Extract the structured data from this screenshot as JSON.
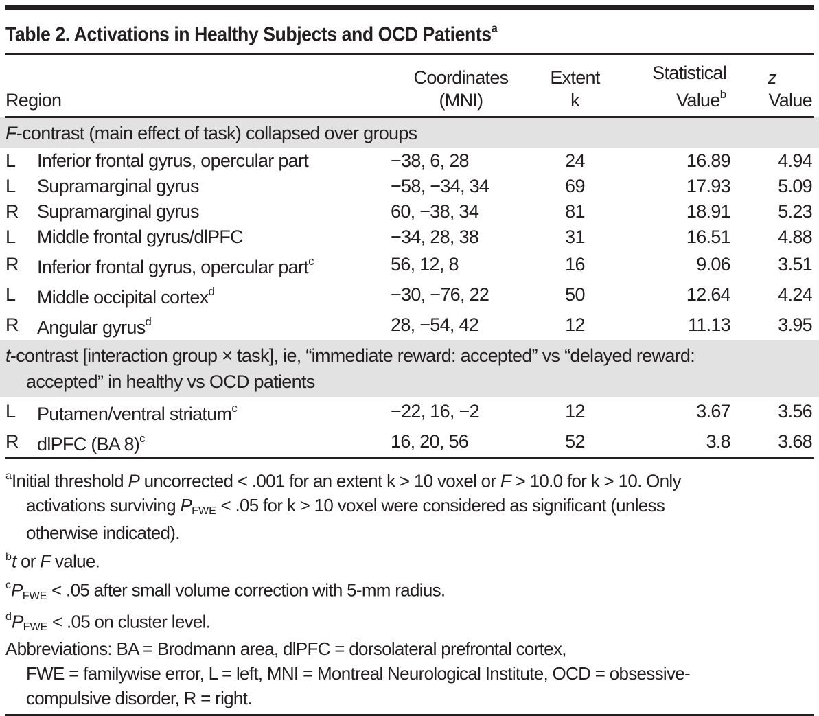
{
  "colors": {
    "text": "#231f20",
    "rule": "#231f20",
    "section_bg": "#e2e2e2",
    "page_bg": "#ffffff"
  },
  "title": [
    {
      "t": "Table 2. Activations in Healthy Subjects and OCD Patients"
    },
    {
      "t": "a",
      "sup": true
    }
  ],
  "columns": {
    "region": {
      "line1": [],
      "line2": [
        {
          "t": "Region"
        }
      ]
    },
    "coordinates": {
      "line1": [
        {
          "t": "Coordinates"
        }
      ],
      "line2": [
        {
          "t": "(MNI)"
        }
      ]
    },
    "extent": {
      "line1": [
        {
          "t": "Extent"
        }
      ],
      "line2": [
        {
          "t": "k"
        }
      ]
    },
    "statistical": {
      "line1": [
        {
          "t": "Statistical"
        }
      ],
      "line2": [
        {
          "t": "Value"
        },
        {
          "t": "b",
          "sup": true
        }
      ]
    },
    "z": {
      "line1": [
        {
          "t": "z",
          "i": true
        }
      ],
      "line2": [
        {
          "t": "Value"
        }
      ]
    }
  },
  "sections": [
    {
      "header_lines": [
        [
          {
            "t": "F",
            "i": true
          },
          {
            "t": "-contrast (main effect of task) collapsed over groups"
          }
        ]
      ],
      "rows": [
        {
          "side": "L",
          "region": [
            {
              "t": "Inferior frontal gyrus, opercular part"
            }
          ],
          "coordinates": "−38, 6, 28",
          "extent": "24",
          "statistical": "16.89",
          "z": "4.94"
        },
        {
          "side": "L",
          "region": [
            {
              "t": "Supramarginal gyrus"
            }
          ],
          "coordinates": "−58, −34, 34",
          "extent": "69",
          "statistical": "17.93",
          "z": "5.09"
        },
        {
          "side": "R",
          "region": [
            {
              "t": "Supramarginal gyrus"
            }
          ],
          "coordinates": "60, −38, 34",
          "extent": "81",
          "statistical": "18.91",
          "z": "5.23"
        },
        {
          "side": "L",
          "region": [
            {
              "t": "Middle frontal gyrus/dlPFC"
            }
          ],
          "coordinates": "−34, 28, 38",
          "extent": "31",
          "statistical": "16.51",
          "z": "4.88"
        },
        {
          "side": "R",
          "region": [
            {
              "t": "Inferior frontal gyrus, opercular part"
            },
            {
              "t": "c",
              "sup": true
            }
          ],
          "coordinates": "56, 12, 8",
          "extent": "16",
          "statistical": "9.06",
          "z": "3.51"
        },
        {
          "side": "L",
          "region": [
            {
              "t": "Middle occipital cortex"
            },
            {
              "t": "d",
              "sup": true
            }
          ],
          "coordinates": "−30, −76, 22",
          "extent": "50",
          "statistical": "12.64",
          "z": "4.24"
        },
        {
          "side": "R",
          "region": [
            {
              "t": "Angular gyrus"
            },
            {
              "t": "d",
              "sup": true
            }
          ],
          "coordinates": "28, −54, 42",
          "extent": "12",
          "statistical": "11.13",
          "z": "3.95"
        }
      ]
    },
    {
      "header_lines": [
        [
          {
            "t": "t",
            "i": true
          },
          {
            "t": "-contrast [interaction group × task], ie, “immediate reward: accepted” vs “delayed reward:"
          }
        ],
        [
          {
            "t": "accepted” in healthy vs OCD patients"
          }
        ]
      ],
      "rows": [
        {
          "side": "L",
          "region": [
            {
              "t": "Putamen/ventral striatum"
            },
            {
              "t": "c",
              "sup": true
            }
          ],
          "coordinates": "−22, 16, −2",
          "extent": "12",
          "statistical": "3.67",
          "z": "3.56"
        },
        {
          "side": "R",
          "region": [
            {
              "t": "dlPFC (BA 8)"
            },
            {
              "t": "c",
              "sup": true
            }
          ],
          "coordinates": "16, 20, 56",
          "extent": "52",
          "statistical": "3.8",
          "z": "3.68"
        }
      ]
    }
  ],
  "footnotes": [
    {
      "marker": "a",
      "lines": [
        [
          {
            "t": "Initial threshold "
          },
          {
            "t": "P",
            "i": true
          },
          {
            "t": " uncorrected < .001 for an extent k > 10 voxel or "
          },
          {
            "t": "F",
            "i": true
          },
          {
            "t": " > 10.0 for k > 10. Only"
          }
        ],
        [
          {
            "t": "activations surviving "
          },
          {
            "t": "P",
            "i": true
          },
          {
            "t": "FWE",
            "sub": true
          },
          {
            "t": " < .05 for k > 10 voxel were considered as significant (unless"
          }
        ],
        [
          {
            "t": "otherwise indicated)."
          }
        ]
      ]
    },
    {
      "marker": "b",
      "lines": [
        [
          {
            "t": "t",
            "i": true
          },
          {
            "t": " or "
          },
          {
            "t": "F",
            "i": true
          },
          {
            "t": " value."
          }
        ]
      ]
    },
    {
      "marker": "c",
      "lines": [
        [
          {
            "t": "P",
            "i": true
          },
          {
            "t": "FWE",
            "sub": true
          },
          {
            "t": " < .05 after small volume correction with 5-mm radius."
          }
        ]
      ]
    },
    {
      "marker": "d",
      "lines": [
        [
          {
            "t": "P",
            "i": true
          },
          {
            "t": "FWE",
            "sub": true
          },
          {
            "t": " < .05 on cluster level."
          }
        ]
      ]
    },
    {
      "marker": "",
      "lines": [
        [
          {
            "t": "Abbreviations: BA = Brodmann area, dlPFC = dorsolateral prefrontal cortex,"
          }
        ],
        [
          {
            "t": "FWE = familywise error, L = left, MNI = Montreal Neurological Institute, OCD = obsessive-"
          }
        ],
        [
          {
            "t": "compulsive disorder, R = right."
          }
        ]
      ]
    }
  ]
}
